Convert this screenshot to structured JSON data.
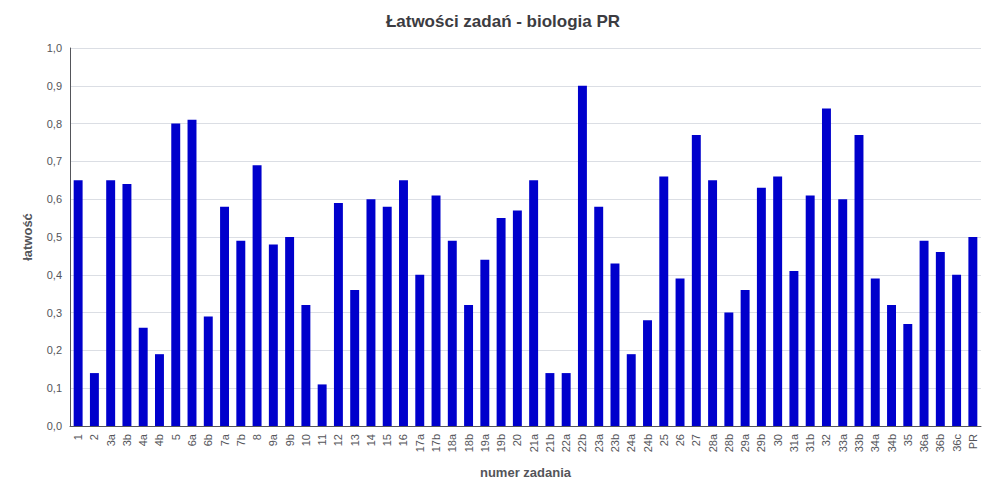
{
  "chart_data": {
    "type": "bar",
    "title": "Łatwości zadań - biologia PR",
    "xlabel": "numer zadania",
    "ylabel": "łatwość",
    "categories": [
      "1",
      "2",
      "3a",
      "3b",
      "4a",
      "4b",
      "5",
      "6a",
      "6b",
      "7a",
      "7b",
      "8",
      "9a",
      "9b",
      "10",
      "11",
      "12",
      "13",
      "14",
      "15",
      "16",
      "17a",
      "17b",
      "18a",
      "18b",
      "19a",
      "19b",
      "20",
      "21a",
      "21b",
      "22a",
      "22b",
      "23a",
      "23b",
      "24a",
      "24b",
      "25",
      "26",
      "27",
      "28a",
      "28b",
      "29a",
      "29b",
      "30",
      "31a",
      "31b",
      "32",
      "33a",
      "33b",
      "34a",
      "34b",
      "35",
      "36a",
      "36b",
      "36c",
      "PR"
    ],
    "values": [
      0.65,
      0.14,
      0.65,
      0.64,
      0.26,
      0.19,
      0.8,
      0.81,
      0.29,
      0.58,
      0.49,
      0.69,
      0.48,
      0.5,
      0.32,
      0.11,
      0.59,
      0.36,
      0.6,
      0.58,
      0.65,
      0.4,
      0.61,
      0.49,
      0.32,
      0.44,
      0.55,
      0.57,
      0.65,
      0.14,
      0.14,
      0.9,
      0.58,
      0.43,
      0.19,
      0.28,
      0.66,
      0.39,
      0.77,
      0.65,
      0.3,
      0.36,
      0.63,
      0.66,
      0.41,
      0.61,
      0.84,
      0.6,
      0.77,
      0.39,
      0.32,
      0.27,
      0.49,
      0.46,
      0.4,
      0.5
    ],
    "color": "#0000CC",
    "ylim": [
      0.0,
      1.0
    ],
    "yticks": [
      {
        "value": 0.0,
        "label": "0,0"
      },
      {
        "value": 0.1,
        "label": "0,1"
      },
      {
        "value": 0.2,
        "label": "0,2"
      },
      {
        "value": 0.3,
        "label": "0,3"
      },
      {
        "value": 0.4,
        "label": "0,4"
      },
      {
        "value": 0.5,
        "label": "0,5"
      },
      {
        "value": 0.6,
        "label": "0,6"
      },
      {
        "value": 0.7,
        "label": "0,7"
      },
      {
        "value": 0.8,
        "label": "0,8"
      },
      {
        "value": 0.9,
        "label": "0,9"
      },
      {
        "value": 1.0,
        "label": "1,0"
      }
    ],
    "grid": true
  }
}
